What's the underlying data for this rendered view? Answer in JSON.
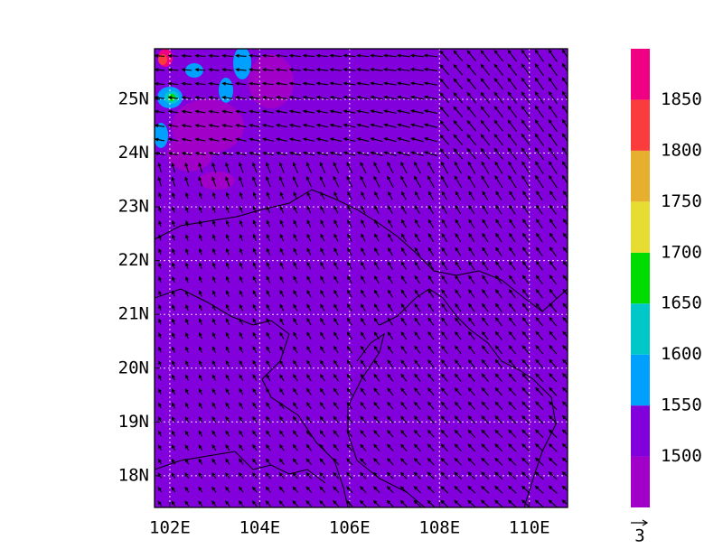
{
  "map": {
    "xlim": [
      101.66,
      110.85
    ],
    "ylim": [
      17.41,
      25.94
    ],
    "xticks": [
      {
        "value": 102,
        "label": "102E"
      },
      {
        "value": 104,
        "label": "104E"
      },
      {
        "value": 106,
        "label": "106E"
      },
      {
        "value": 108,
        "label": "108E"
      },
      {
        "value": 110,
        "label": "110E"
      }
    ],
    "yticks": [
      {
        "value": 18,
        "label": "18N"
      },
      {
        "value": 19,
        "label": "19N"
      },
      {
        "value": 20,
        "label": "20N"
      },
      {
        "value": 21,
        "label": "21N"
      },
      {
        "value": 22,
        "label": "22N"
      },
      {
        "value": 23,
        "label": "23N"
      },
      {
        "value": 24,
        "label": "24N"
      },
      {
        "value": 25,
        "label": "25N"
      }
    ],
    "grid": true,
    "colorbar": {
      "range": [
        1450,
        1900
      ],
      "levels": [
        1500,
        1550,
        1600,
        1650,
        1700,
        1750,
        1800,
        1850
      ],
      "colors": [
        "#a000c8",
        "#8200dc",
        "#00a0ff",
        "#00c8c8",
        "#00dc00",
        "#e6dc32",
        "#e6af2d",
        "#fa3c3c",
        "#f00082"
      ]
    },
    "vector_reference": 3
  }
}
